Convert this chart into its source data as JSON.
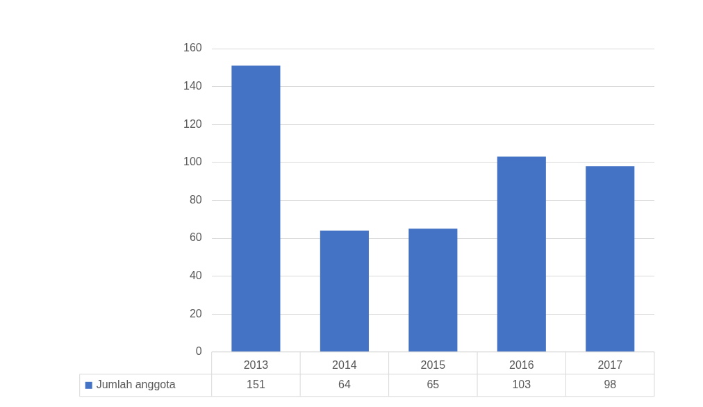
{
  "chart_data": {
    "type": "bar",
    "categories": [
      "2013",
      "2014",
      "2015",
      "2016",
      "2017"
    ],
    "series": [
      {
        "name": "Jumlah anggota",
        "color": "#4472c4",
        "values": [
          151,
          64,
          65,
          103,
          98
        ]
      }
    ],
    "ylim": [
      0,
      160
    ],
    "yticks": [
      0,
      20,
      40,
      60,
      80,
      100,
      120,
      140,
      160
    ],
    "grid": "y",
    "legend": "bottom",
    "data_labels": true
  }
}
